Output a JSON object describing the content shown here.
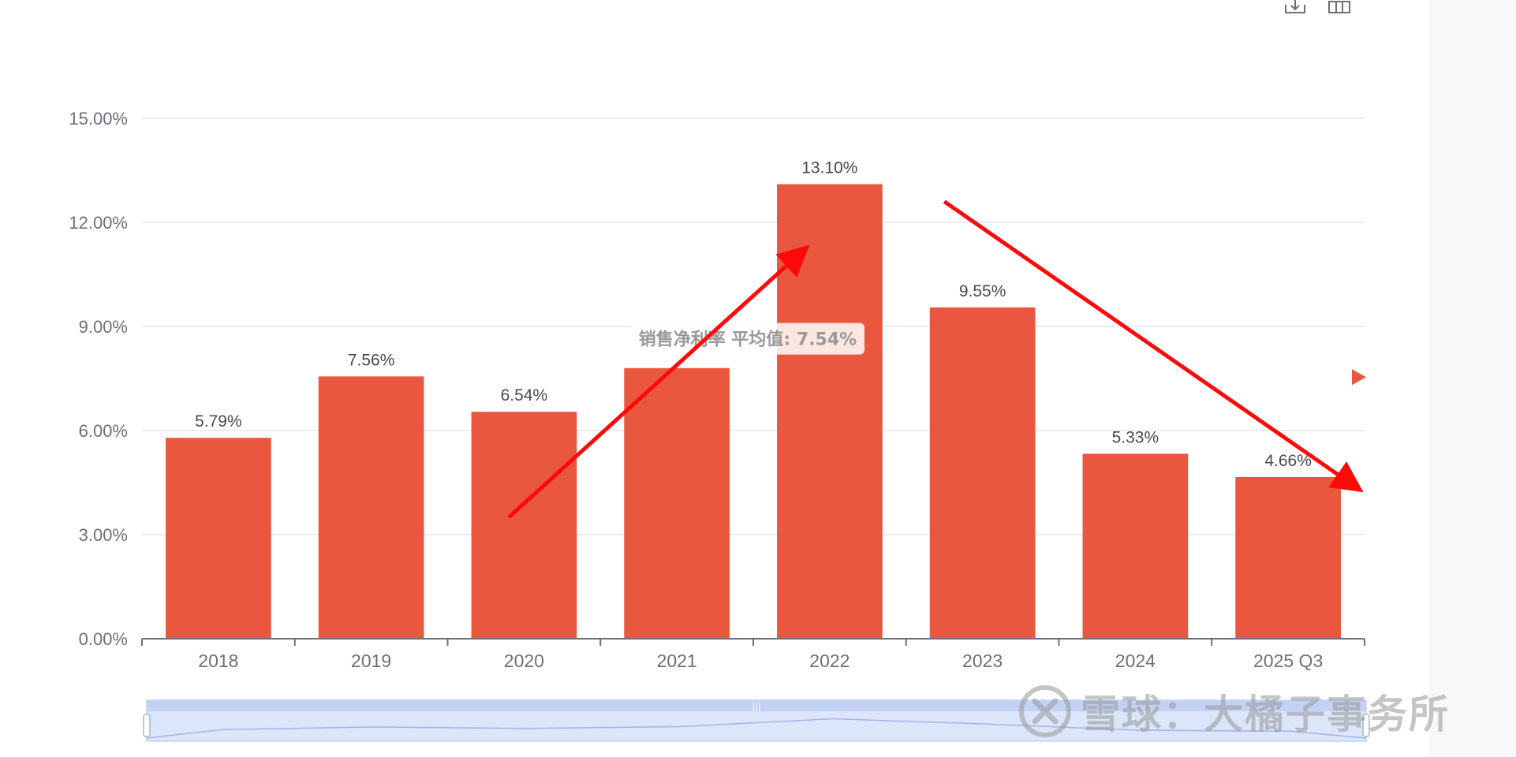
{
  "colors": {
    "bar": "#e8573e",
    "arrow": "#ff0a0a",
    "avg_line": "#e8573e",
    "grid": "#e3e6ee",
    "axis_text": "#6e7079",
    "label_text": "#4a4a4a",
    "zoom_fill": "#dce6fb",
    "zoom_handle": "#c3d2f4"
  },
  "toolbar": {
    "icons": [
      "download-icon",
      "data-view-icon"
    ]
  },
  "watermark": {
    "text": "雪球：大橘子事务所"
  },
  "chart_data": {
    "type": "bar",
    "categories": [
      "2018",
      "2019",
      "2020",
      "2021",
      "2022",
      "2023",
      "2024",
      "2025 Q3"
    ],
    "series": [
      {
        "name": "销售净利率",
        "values": [
          5.79,
          7.56,
          6.54,
          7.8,
          13.1,
          9.55,
          5.33,
          4.66
        ],
        "labels": [
          "5.79%",
          "7.56%",
          "6.54%",
          "",
          "13.10%",
          "9.55%",
          "5.33%",
          "4.66%"
        ]
      }
    ],
    "yticks": [
      "0.00%",
      "3.00%",
      "6.00%",
      "9.00%",
      "12.00%",
      "15.00%"
    ],
    "ylim": [
      0,
      15
    ],
    "markline": {
      "value": 7.54,
      "label": "销售净利率 平均值: 7.54%"
    },
    "annotations": [
      {
        "type": "arrow",
        "from": [
          2.4,
          3.5
        ],
        "to": [
          4.33,
          11.2
        ]
      },
      {
        "type": "arrow",
        "from": [
          5.25,
          12.6
        ],
        "to": [
          7.95,
          4.35
        ]
      }
    ],
    "datazoom": {
      "start": 0,
      "end": 100
    },
    "grid": true
  }
}
